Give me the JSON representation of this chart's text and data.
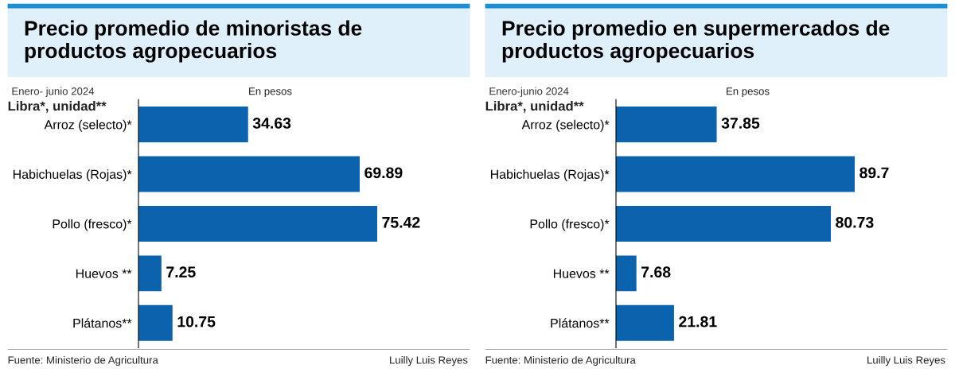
{
  "chart_data": [
    {
      "type": "bar",
      "orientation": "horizontal",
      "title": "Precio promedio de minoristas de\nproductos agropecuarios",
      "subtitle": "Enero- junio 2024",
      "categories": [
        "Arroz (selecto)*",
        "Habichuelas (Rojas)*",
        "Pollo (fresco)*",
        "Huevos **",
        "Plátanos**"
      ],
      "values": [
        34.63,
        69.89,
        75.42,
        7.25,
        10.75
      ],
      "color": "#0b62ad",
      "data_labels": true,
      "grid": false,
      "legend": false,
      "annotations": [
        "En pesos",
        "Libra*, unidad**",
        "Fuente: Ministerio de Agricultura",
        "Luilly Luis Reyes"
      ]
    },
    {
      "type": "bar",
      "orientation": "horizontal",
      "title": "Precio promedio en supermercados de\nproductos agropecuarios",
      "subtitle": "Enero-junio 2024",
      "categories": [
        "Arroz (selecto)*",
        "Habichuelas (Rojas)*",
        "Pollo (fresco)*",
        "Huevos **",
        "Plátanos**"
      ],
      "values": [
        37.85,
        89.7,
        80.73,
        7.68,
        21.81
      ],
      "color": "#0b62ad",
      "data_labels": true,
      "grid": false,
      "legend": false,
      "annotations": [
        "En pesos",
        "Libra*, unidad**",
        "Fuente: Ministerio de Agricultura",
        "Luilly Luis Reyes"
      ]
    }
  ]
}
